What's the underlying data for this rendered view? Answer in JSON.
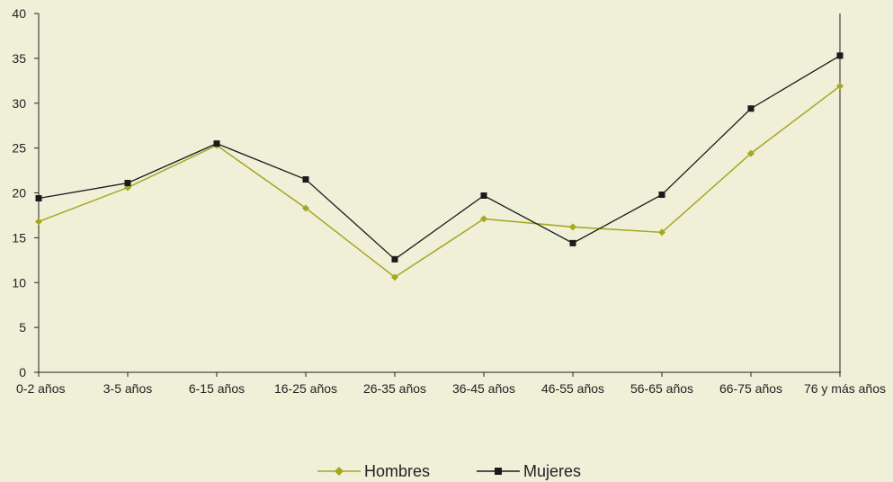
{
  "chart_data": {
    "type": "line",
    "categories": [
      "0-2 años",
      "3-5 años",
      "6-15 años",
      "16-25 años",
      "26-35 años",
      "36-45 años",
      "46-55 años",
      "56-65 años",
      "66-75 años",
      "76 y más años"
    ],
    "series": [
      {
        "name": "Hombres",
        "values": [
          16.8,
          20.6,
          25.3,
          18.3,
          10.6,
          17.1,
          16.2,
          15.6,
          24.4,
          31.9
        ],
        "color": "#a3a820",
        "marker": "diamond"
      },
      {
        "name": "Mujeres",
        "values": [
          19.4,
          21.1,
          25.5,
          21.5,
          12.6,
          19.7,
          14.4,
          19.8,
          29.4,
          35.3
        ],
        "color": "#1a1a1a",
        "marker": "square"
      }
    ],
    "ylim": [
      0,
      40
    ],
    "yticks": [
      0,
      5,
      10,
      15,
      20,
      25,
      30,
      35,
      40
    ],
    "grid": false,
    "legend_position": "bottom-center"
  }
}
